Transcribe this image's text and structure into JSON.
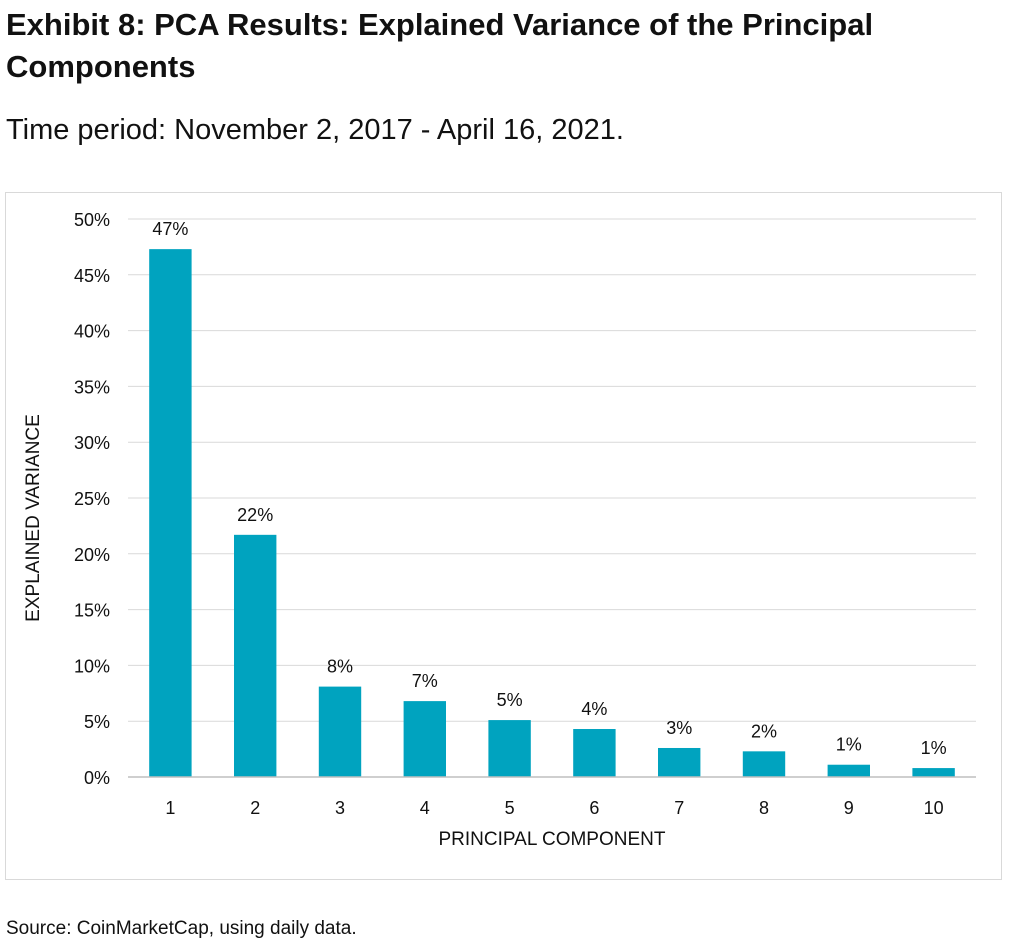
{
  "page": {
    "title": "Exhibit 8: PCA Results: Explained Variance of the Principal Components",
    "subtitle": "Time period: November 2, 2017 - April 16, 2021.",
    "source": "Source: CoinMarketCap, using daily data."
  },
  "colors": {
    "bar": "#00a3bf",
    "grid": "#d9d9d9",
    "axis": "#bfbfbf",
    "text": "#111111"
  },
  "chart_data": {
    "type": "bar",
    "title": "",
    "xlabel": "PRINCIPAL COMPONENT",
    "ylabel": "EXPLAINED VARIANCE",
    "categories": [
      "1",
      "2",
      "3",
      "4",
      "5",
      "6",
      "7",
      "8",
      "9",
      "10"
    ],
    "values": [
      47.3,
      21.7,
      8.1,
      6.8,
      5.1,
      4.3,
      2.6,
      2.3,
      1.1,
      0.8
    ],
    "data_labels": [
      "47%",
      "22%",
      "8%",
      "7%",
      "5%",
      "4%",
      "3%",
      "2%",
      "1%",
      "1%"
    ],
    "ylim": [
      0,
      50
    ],
    "yticks": [
      0,
      5,
      10,
      15,
      20,
      25,
      30,
      35,
      40,
      45,
      50
    ],
    "ytick_labels": [
      "0%",
      "5%",
      "10%",
      "15%",
      "20%",
      "25%",
      "30%",
      "35%",
      "40%",
      "45%",
      "50%"
    ],
    "grid": true,
    "legend": "none"
  }
}
